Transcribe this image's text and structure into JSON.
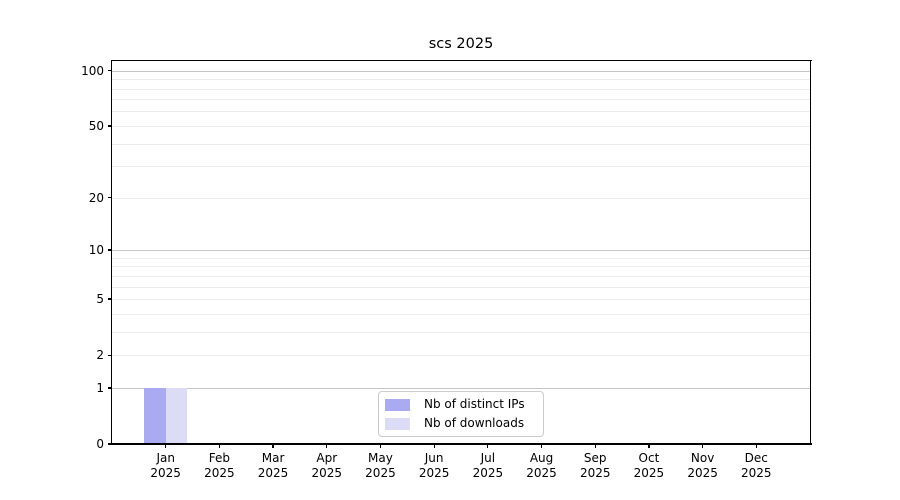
{
  "chart_data": {
    "type": "bar",
    "title": "scs 2025",
    "x_axis": {
      "months": [
        "Jan",
        "Feb",
        "Mar",
        "Apr",
        "May",
        "Jun",
        "Jul",
        "Aug",
        "Sep",
        "Oct",
        "Nov",
        "Dec"
      ],
      "year": "2025"
    },
    "y_axis": {
      "scale": "log1p",
      "tick_values": [
        0,
        1,
        2,
        5,
        10,
        20,
        50,
        100
      ],
      "major_gridlines": [
        1,
        10,
        100
      ],
      "minor_gridlines": [
        2,
        3,
        4,
        5,
        6,
        7,
        8,
        9,
        20,
        30,
        40,
        50,
        60,
        70,
        80,
        90
      ],
      "min": 0,
      "max_display": 112.8
    },
    "series": [
      {
        "name": "Nb of distinct IPs",
        "color": "#a9aaf2",
        "values": [
          1,
          0,
          0,
          0,
          0,
          0,
          0,
          0,
          0,
          0,
          0,
          0
        ]
      },
      {
        "name": "Nb of downloads",
        "color": "#dcdcf7",
        "values": [
          1,
          0,
          0,
          0,
          0,
          0,
          0,
          0,
          0,
          0,
          0,
          0
        ]
      }
    ],
    "legend": {
      "position": "lower center"
    },
    "colors": {
      "major_grid": "#c6c6c6",
      "minor_grid": "#ededed",
      "axis": "#000000",
      "text": "#000000",
      "background": "#ffffff"
    }
  }
}
